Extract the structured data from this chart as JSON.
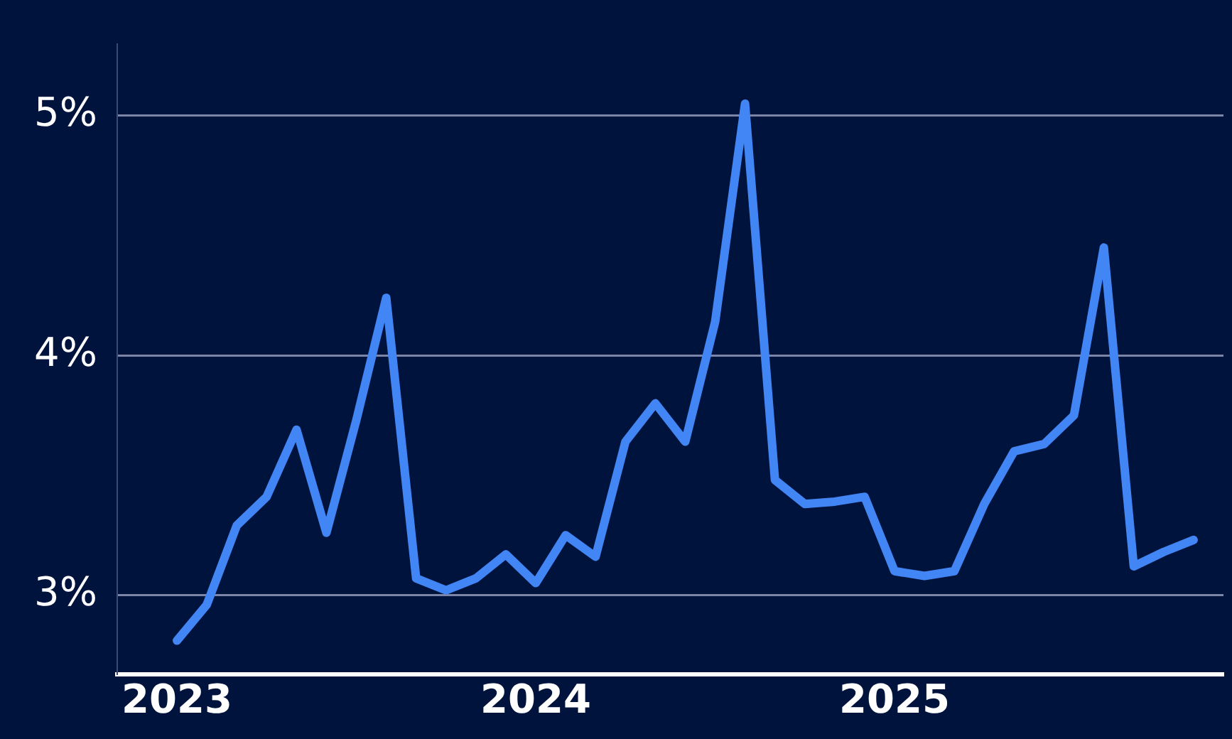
{
  "chart_data": {
    "type": "line",
    "x": [
      "2023-01",
      "2023-02",
      "2023-03",
      "2023-04",
      "2023-05",
      "2023-06",
      "2023-07",
      "2023-08",
      "2023-09",
      "2023-10",
      "2023-11",
      "2023-12",
      "2024-01",
      "2024-02",
      "2024-03",
      "2024-04",
      "2024-05",
      "2024-06",
      "2024-07",
      "2024-08",
      "2024-09",
      "2024-10",
      "2024-11",
      "2024-12",
      "2025-01",
      "2025-02",
      "2025-03",
      "2025-04",
      "2025-05",
      "2025-06",
      "2025-07",
      "2025-08",
      "2025-09",
      "2025-10",
      "2025-11"
    ],
    "series": [
      {
        "color": "#4285f4",
        "values": [
          2.81,
          2.96,
          3.29,
          3.41,
          3.69,
          3.26,
          3.73,
          4.24,
          3.07,
          3.02,
          3.07,
          3.17,
          3.05,
          3.25,
          3.16,
          3.64,
          3.8,
          3.64,
          4.14,
          5.05,
          3.48,
          3.38,
          3.39,
          3.41,
          3.1,
          3.08,
          3.1,
          3.38,
          3.6,
          3.63,
          3.75,
          4.45,
          3.12,
          3.18,
          3.23
        ]
      }
    ],
    "xlim": [
      "2022-11",
      "2025-12"
    ],
    "xticks": [
      "2023",
      "2024",
      "2025"
    ],
    "ylim": [
      2.67,
      5.3
    ],
    "yticks": [
      {
        "value": 3,
        "label": "3%"
      },
      {
        "value": 4,
        "label": "4%"
      },
      {
        "value": 5,
        "label": "5%"
      }
    ],
    "grid": "y",
    "marker": "none",
    "line_style": "solid"
  }
}
